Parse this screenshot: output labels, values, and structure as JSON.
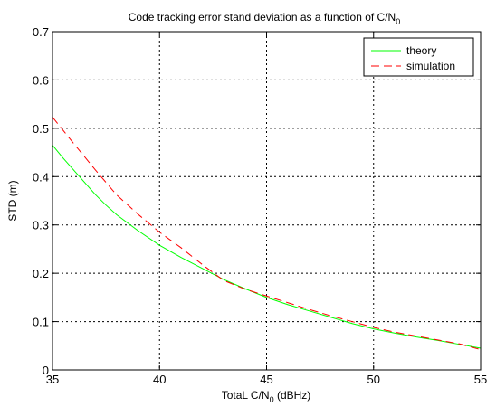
{
  "chart_data": {
    "type": "line",
    "title": {
      "prefix": "Code tracking error stand deviation as a function of C/N",
      "sub": "0"
    },
    "xlabel": {
      "prefix": "TotaL C/N",
      "sub": "0",
      "suffix": " (dBHz)"
    },
    "ylabel": "STD (m)",
    "xlim": [
      35,
      55
    ],
    "ylim": [
      0,
      0.7
    ],
    "xticks": [
      "35",
      "40",
      "45",
      "50",
      "55"
    ],
    "yticks": [
      "0",
      "0.1",
      "0.2",
      "0.3",
      "0.4",
      "0.5",
      "0.6",
      "0.7"
    ],
    "grid": true,
    "legend_position": "top-right",
    "series": [
      {
        "name": "theory",
        "color": "#00ff00",
        "style": "solid",
        "x": [
          35,
          35.5,
          36,
          36.5,
          37,
          37.5,
          38,
          39,
          40,
          41,
          42,
          43,
          44,
          45,
          46,
          47,
          48,
          49,
          50,
          51,
          52,
          53,
          54,
          55
        ],
        "y": [
          0.465,
          0.438,
          0.413,
          0.388,
          0.363,
          0.341,
          0.321,
          0.288,
          0.258,
          0.233,
          0.21,
          0.187,
          0.168,
          0.15,
          0.135,
          0.122,
          0.109,
          0.096,
          0.085,
          0.076,
          0.068,
          0.061,
          0.053,
          0.045
        ]
      },
      {
        "name": "simulation",
        "color": "#ff0000",
        "style": "dashed",
        "x": [
          35,
          36,
          37,
          38,
          39,
          40,
          41,
          42,
          43,
          44,
          45,
          46,
          47,
          48,
          49,
          50,
          51,
          52,
          53,
          54,
          55
        ],
        "y": [
          0.523,
          0.468,
          0.414,
          0.362,
          0.322,
          0.285,
          0.253,
          0.218,
          0.185,
          0.167,
          0.153,
          0.139,
          0.125,
          0.112,
          0.1,
          0.088,
          0.078,
          0.07,
          0.062,
          0.054,
          0.042
        ]
      }
    ]
  }
}
